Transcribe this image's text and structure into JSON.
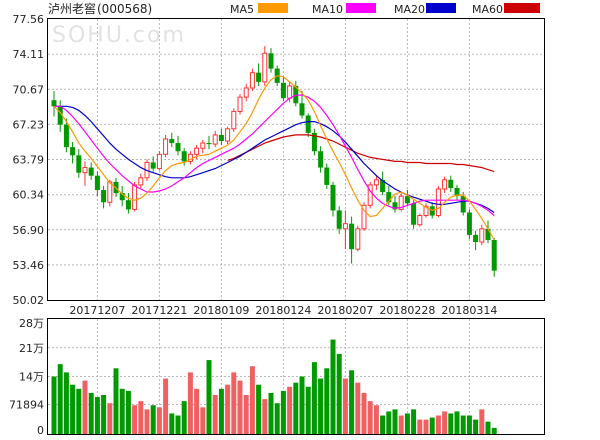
{
  "stock": {
    "name": "泸州老窖",
    "code": "(000568)"
  },
  "watermark": "SOHU.com",
  "legend": [
    {
      "label": "MA5",
      "color": "#ff9900"
    },
    {
      "label": "MA10",
      "color": "#ff00ff"
    },
    {
      "label": "MA20",
      "color": "#0000cc"
    },
    {
      "label": "MA60",
      "color": "#cc0000"
    }
  ],
  "colors": {
    "up": "#ff3333",
    "up_vol": "#f06060",
    "down": "#009900",
    "grid": "#b8b8b8",
    "frame": "#000000"
  },
  "chart_data": {
    "type": "candlestick",
    "price_axis": {
      "ticks": [
        "77.56",
        "74.11",
        "70.67",
        "67.23",
        "63.79",
        "60.34",
        "56.90",
        "53.46",
        "50.02"
      ],
      "ylim": [
        50.02,
        77.56
      ]
    },
    "volume_axis": {
      "ticks": [
        "28万",
        "21万",
        "14万",
        "71894",
        "0"
      ],
      "ylim": [
        0,
        280000
      ]
    },
    "date_labels": [
      "20171207",
      "20171221",
      "20180109",
      "20180124",
      "20180207",
      "20180228",
      "20180314"
    ],
    "date_label_index": [
      7,
      17,
      27,
      37,
      47,
      57,
      67
    ],
    "candles": [
      [
        69.6,
        70.5,
        68.0,
        69.0
      ],
      [
        69.0,
        69.6,
        66.5,
        67.2
      ],
      [
        67.2,
        67.8,
        64.5,
        65.0
      ],
      [
        65.0,
        65.5,
        63.4,
        64.2
      ],
      [
        64.2,
        64.8,
        62.0,
        62.5
      ],
      [
        62.5,
        63.6,
        61.2,
        63.0
      ],
      [
        63.0,
        63.5,
        61.8,
        62.2
      ],
      [
        62.2,
        62.6,
        60.2,
        60.8
      ],
      [
        60.8,
        61.2,
        59.0,
        59.6
      ],
      [
        59.6,
        61.8,
        59.2,
        61.6
      ],
      [
        61.6,
        62.0,
        60.1,
        60.5
      ],
      [
        60.5,
        61.2,
        59.2,
        59.8
      ],
      [
        59.8,
        60.5,
        58.5,
        58.9
      ],
      [
        58.9,
        61.6,
        58.7,
        61.3
      ],
      [
        61.3,
        62.4,
        61.0,
        62.0
      ],
      [
        62.0,
        63.8,
        61.7,
        63.5
      ],
      [
        63.5,
        64.1,
        62.6,
        62.9
      ],
      [
        62.9,
        64.6,
        62.7,
        64.3
      ],
      [
        64.3,
        66.2,
        64.0,
        65.8
      ],
      [
        65.8,
        66.4,
        65.0,
        65.4
      ],
      [
        65.4,
        66.1,
        64.2,
        64.6
      ],
      [
        64.6,
        64.9,
        63.2,
        63.6
      ],
      [
        63.6,
        64.6,
        63.3,
        64.3
      ],
      [
        64.3,
        65.2,
        63.8,
        64.9
      ],
      [
        64.9,
        65.7,
        64.4,
        65.4
      ],
      [
        65.4,
        66.1,
        64.8,
        65.3
      ],
      [
        65.3,
        66.6,
        65.0,
        66.2
      ],
      [
        66.2,
        66.8,
        65.2,
        65.6
      ],
      [
        65.6,
        67.0,
        65.3,
        66.8
      ],
      [
        66.8,
        68.8,
        66.5,
        68.5
      ],
      [
        68.5,
        70.2,
        68.2,
        69.9
      ],
      [
        69.9,
        71.2,
        69.5,
        70.8
      ],
      [
        70.8,
        72.7,
        70.5,
        72.3
      ],
      [
        72.3,
        73.2,
        71.0,
        71.4
      ],
      [
        71.4,
        74.9,
        71.0,
        74.2
      ],
      [
        74.2,
        74.7,
        72.3,
        72.7
      ],
      [
        72.7,
        73.0,
        71.0,
        71.3
      ],
      [
        71.3,
        71.9,
        69.5,
        69.8
      ],
      [
        69.8,
        71.4,
        69.4,
        71.0
      ],
      [
        71.0,
        71.5,
        69.0,
        69.3
      ],
      [
        69.3,
        70.5,
        67.8,
        68.1
      ],
      [
        68.1,
        68.3,
        66.0,
        66.4
      ],
      [
        66.4,
        66.8,
        64.2,
        64.6
      ],
      [
        64.6,
        65.1,
        62.5,
        63.0
      ],
      [
        63.0,
        63.4,
        60.9,
        61.3
      ],
      [
        61.3,
        61.6,
        58.2,
        58.8
      ],
      [
        58.8,
        59.2,
        56.5,
        57.0
      ],
      [
        57.0,
        58.8,
        55.0,
        57.5
      ],
      [
        57.5,
        58.2,
        53.6,
        55.0
      ],
      [
        55.0,
        57.3,
        54.8,
        57.0
      ],
      [
        57.0,
        59.6,
        56.8,
        59.3
      ],
      [
        59.3,
        61.6,
        59.0,
        61.3
      ],
      [
        61.3,
        62.3,
        60.8,
        61.8
      ],
      [
        61.8,
        62.6,
        60.3,
        60.6
      ],
      [
        60.6,
        61.2,
        59.3,
        59.6
      ],
      [
        59.6,
        60.2,
        58.6,
        58.9
      ],
      [
        58.9,
        60.5,
        58.7,
        60.2
      ],
      [
        60.2,
        60.8,
        59.2,
        59.5
      ],
      [
        59.5,
        59.8,
        57.0,
        57.4
      ],
      [
        57.4,
        58.5,
        57.2,
        58.3
      ],
      [
        58.3,
        59.5,
        58.1,
        59.2
      ],
      [
        59.2,
        59.6,
        58.0,
        58.3
      ],
      [
        58.3,
        61.2,
        58.1,
        60.9
      ],
      [
        60.9,
        62.1,
        60.5,
        61.8
      ],
      [
        61.8,
        62.2,
        60.6,
        61.0
      ],
      [
        61.0,
        61.3,
        59.8,
        60.2
      ],
      [
        60.2,
        60.6,
        58.3,
        58.6
      ],
      [
        58.6,
        58.9,
        56.0,
        56.4
      ],
      [
        56.4,
        56.8,
        54.9,
        55.7
      ],
      [
        55.7,
        57.4,
        55.4,
        57.0
      ],
      [
        57.0,
        57.8,
        55.6,
        55.9
      ],
      [
        55.9,
        56.1,
        52.3,
        52.9
      ]
    ],
    "volume": [
      140000,
      170000,
      150000,
      120000,
      110000,
      130000,
      100000,
      90000,
      95000,
      75000,
      160000,
      110000,
      105000,
      70000,
      80000,
      60000,
      70000,
      65000,
      135000,
      50000,
      45000,
      80000,
      150000,
      110000,
      65000,
      180000,
      95000,
      110000,
      120000,
      150000,
      130000,
      95000,
      165000,
      120000,
      85000,
      100000,
      75000,
      105000,
      115000,
      125000,
      140000,
      115000,
      175000,
      135000,
      160000,
      230000,
      195000,
      135000,
      155000,
      125000,
      100000,
      80000,
      70000,
      45000,
      55000,
      60000,
      45000,
      50000,
      60000,
      35000,
      35000,
      40000,
      45000,
      55000,
      50000,
      55000,
      45000,
      45000,
      35000,
      60000,
      30000,
      15000
    ],
    "ma5": [
      69.0,
      68.4,
      67.5,
      66.5,
      65.4,
      64.6,
      63.9,
      63.1,
      62.3,
      61.5,
      61.0,
      60.4,
      60.0,
      59.8,
      60.0,
      60.5,
      61.2,
      62.0,
      62.7,
      63.2,
      63.4,
      63.5,
      63.8,
      64.1,
      64.2,
      64.3,
      64.6,
      64.9,
      65.2,
      65.7,
      66.5,
      67.3,
      68.4,
      69.7,
      70.8,
      71.6,
      72.0,
      71.9,
      71.4,
      70.9,
      70.3,
      69.6,
      68.5,
      67.1,
      65.8,
      64.6,
      63.5,
      62.3,
      61.0,
      59.8,
      58.8,
      58.2,
      58.3,
      59.0,
      59.7,
      60.4,
      60.6,
      60.3,
      59.9,
      59.5,
      59.1,
      58.8,
      59.0,
      59.6,
      60.1,
      60.3,
      60.3,
      59.7,
      58.9,
      58.0,
      57.0,
      55.9
    ],
    "ma10": [
      69.0,
      69.0,
      68.6,
      68.0,
      67.3,
      66.5,
      65.7,
      64.9,
      64.1,
      63.4,
      62.8,
      62.2,
      61.7,
      61.2,
      60.9,
      60.6,
      60.6,
      60.7,
      60.9,
      61.2,
      61.6,
      62.0,
      62.5,
      63.0,
      63.4,
      63.7,
      64.0,
      64.3,
      64.6,
      64.9,
      65.3,
      65.8,
      66.3,
      66.9,
      67.5,
      68.1,
      68.7,
      69.3,
      69.8,
      70.1,
      70.1,
      69.9,
      69.5,
      68.9,
      68.1,
      67.2,
      66.2,
      65.1,
      64.0,
      62.8,
      61.7,
      60.7,
      60.0,
      59.5,
      59.2,
      59.0,
      59.1,
      59.3,
      59.5,
      59.7,
      59.8,
      59.8,
      59.8,
      59.8,
      59.8,
      59.8,
      59.8,
      59.7,
      59.5,
      59.2,
      58.8,
      58.3
    ],
    "ma20": [
      69.0,
      69.0,
      69.0,
      68.9,
      68.6,
      68.1,
      67.5,
      66.8,
      66.1,
      65.4,
      64.8,
      64.3,
      63.8,
      63.4,
      63.0,
      62.7,
      62.5,
      62.3,
      62.1,
      62.0,
      62.0,
      62.0,
      62.1,
      62.3,
      62.5,
      62.7,
      62.9,
      63.2,
      63.5,
      63.8,
      64.1,
      64.5,
      64.9,
      65.3,
      65.7,
      66.0,
      66.3,
      66.6,
      66.9,
      67.2,
      67.4,
      67.5,
      67.5,
      67.3,
      67.0,
      66.6,
      66.1,
      65.5,
      64.8,
      64.1,
      63.4,
      62.8,
      62.2,
      61.7,
      61.3,
      60.9,
      60.6,
      60.3,
      60.1,
      59.9,
      59.7,
      59.5,
      59.4,
      59.4,
      59.5,
      59.6,
      59.7,
      59.7,
      59.5,
      59.3,
      59.0,
      58.6
    ],
    "ma60": [
      null,
      null,
      null,
      null,
      null,
      null,
      null,
      null,
      null,
      null,
      null,
      null,
      null,
      null,
      null,
      null,
      null,
      null,
      null,
      null,
      null,
      null,
      null,
      null,
      null,
      null,
      null,
      null,
      63.7,
      63.9,
      64.2,
      64.5,
      64.8,
      65.1,
      65.4,
      65.6,
      65.8,
      66.0,
      66.1,
      66.2,
      66.2,
      66.2,
      66.1,
      66.0,
      65.8,
      65.6,
      65.3,
      65.0,
      64.7,
      64.4,
      64.2,
      64.0,
      63.9,
      63.8,
      63.7,
      63.6,
      63.6,
      63.5,
      63.5,
      63.5,
      63.4,
      63.4,
      63.4,
      63.4,
      63.4,
      63.3,
      63.3,
      63.2,
      63.1,
      63.0,
      62.8,
      62.6
    ]
  }
}
